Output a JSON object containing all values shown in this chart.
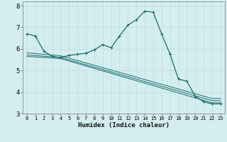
{
  "title": "",
  "xlabel": "Humidex (Indice chaleur)",
  "ylabel": "",
  "bg_color": "#d4eef0",
  "grid_color": "#c0dfe2",
  "line_color": "#1a6b6b",
  "xlim": [
    -0.5,
    23.5
  ],
  "ylim": [
    3,
    8.2
  ],
  "yticks": [
    3,
    4,
    5,
    6,
    7,
    8
  ],
  "xticks": [
    0,
    1,
    2,
    3,
    4,
    5,
    6,
    7,
    8,
    9,
    10,
    11,
    12,
    13,
    14,
    15,
    16,
    17,
    18,
    19,
    20,
    21,
    22,
    23
  ],
  "series": [
    {
      "x": [
        0,
        1,
        2,
        3,
        4,
        5,
        6,
        7,
        8,
        9,
        10,
        11,
        12,
        13,
        14,
        15,
        16,
        17,
        18,
        19,
        20,
        21,
        22,
        23
      ],
      "y": [
        6.7,
        6.6,
        5.9,
        5.65,
        5.6,
        5.7,
        5.75,
        5.8,
        5.95,
        6.2,
        6.05,
        6.6,
        7.1,
        7.35,
        7.75,
        7.7,
        6.7,
        5.75,
        4.6,
        4.5,
        3.8,
        3.55,
        3.45,
        3.45
      ],
      "marker": true
    },
    {
      "x": [
        0,
        4,
        22,
        23
      ],
      "y": [
        5.65,
        5.55,
        3.5,
        3.5
      ],
      "marker": false
    },
    {
      "x": [
        0,
        4,
        22,
        23
      ],
      "y": [
        5.72,
        5.6,
        3.6,
        3.6
      ],
      "marker": false
    },
    {
      "x": [
        0,
        4,
        22,
        23
      ],
      "y": [
        5.82,
        5.68,
        3.7,
        3.7
      ],
      "marker": false
    }
  ]
}
